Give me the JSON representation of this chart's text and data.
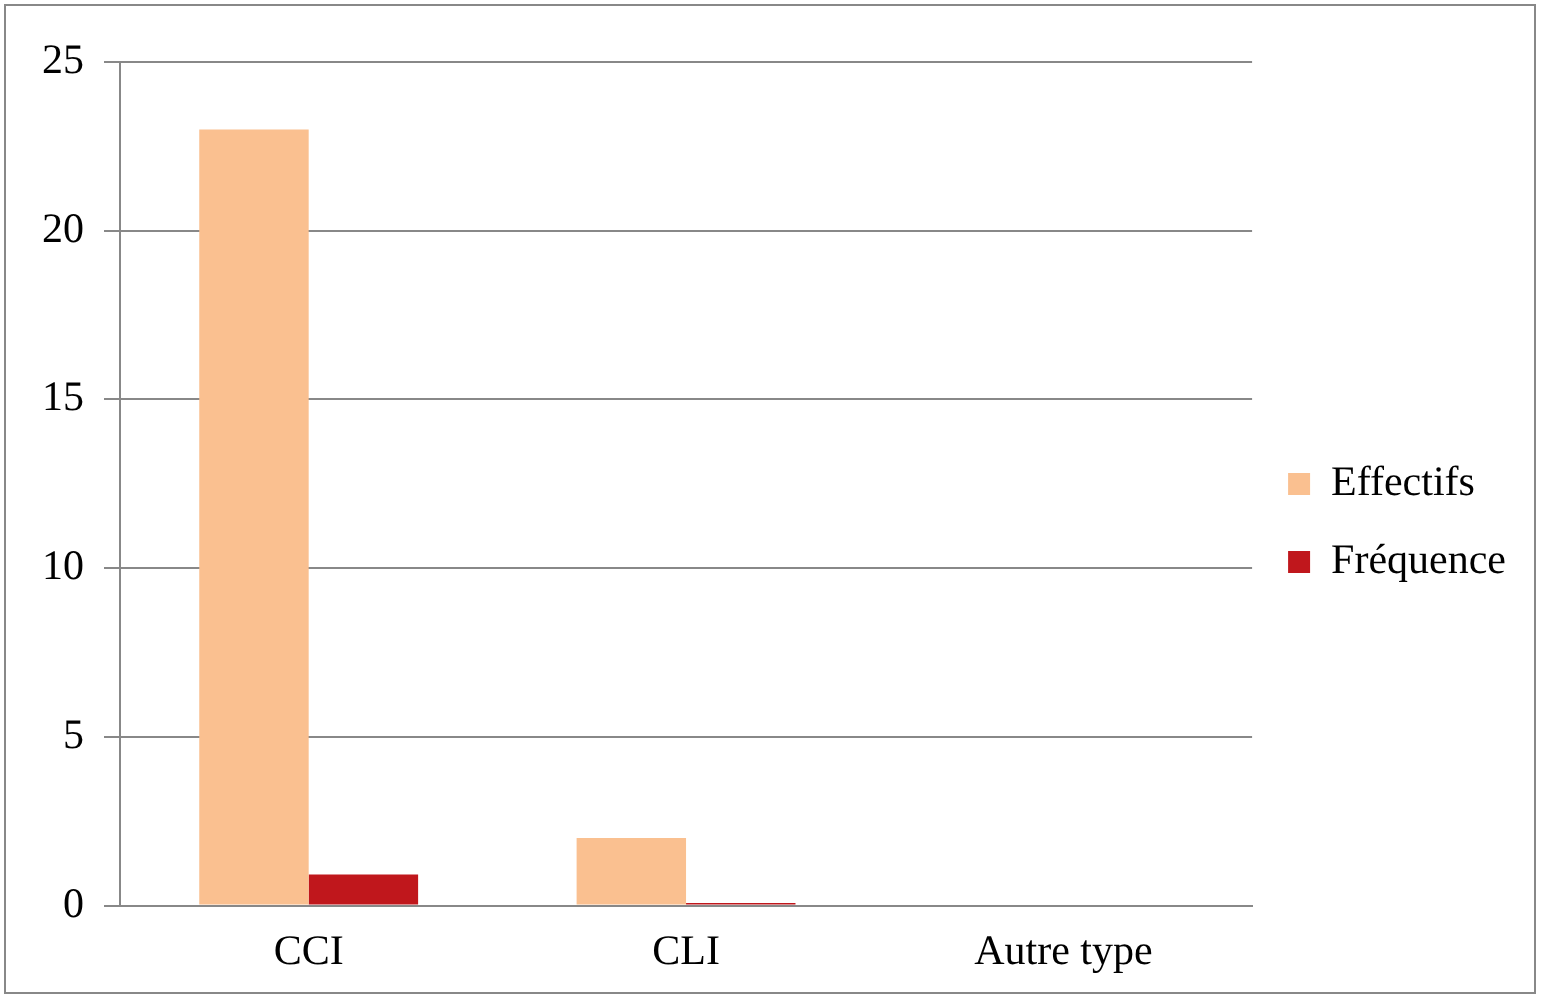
{
  "chart_data": {
    "type": "bar",
    "categories": [
      "CCI",
      "CLI",
      "Autre type"
    ],
    "series": [
      {
        "name": "Effectifs",
        "color": "#fac090",
        "values": [
          23,
          2,
          0
        ]
      },
      {
        "name": "Fréquence",
        "color": "#c0171c",
        "values": [
          0.92,
          0.08,
          0
        ]
      }
    ],
    "ylim": [
      0,
      25
    ],
    "yticks": [
      0,
      5,
      10,
      15,
      20,
      25
    ],
    "grid": "y",
    "legend": "right"
  }
}
